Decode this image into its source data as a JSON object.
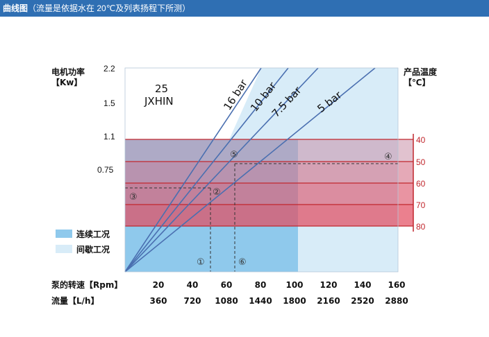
{
  "header": {
    "title": "曲线图",
    "subtitle": "（流量是依据水在 20℃及列表扬程下所测）"
  },
  "chart_data": {
    "type": "line",
    "model": "25\nJXHIN",
    "model_line1": "25",
    "model_line2": "JXHIN",
    "left_axis": {
      "label_line1": "电机功率",
      "label_line2": "【Kw】",
      "ticks": [
        "2.2",
        "1.5",
        "1.1",
        "0.75"
      ]
    },
    "right_axis": {
      "label_line1": "产品温度",
      "label_line2": "【℃】",
      "ticks": [
        "40",
        "50",
        "60",
        "70",
        "80"
      ]
    },
    "x_axis_rpm": {
      "label": "泵的转速【Rpm】",
      "ticks": [
        "20",
        "40",
        "60",
        "80",
        "100",
        "120",
        "140",
        "160"
      ]
    },
    "x_axis_flow": {
      "label": "流量【L/h】",
      "ticks": [
        "360",
        "720",
        "1080",
        "1440",
        "1800",
        "2160",
        "2520",
        "2880"
      ]
    },
    "legend": [
      {
        "label": "连续工况",
        "color": "#8fc9ec"
      },
      {
        "label": "间歇工况",
        "color": "#d8ecf8"
      }
    ],
    "series": [
      {
        "name": "16 bar"
      },
      {
        "name": "10 bar"
      },
      {
        "name": "7.5 bar"
      },
      {
        "name": "5 bar"
      }
    ],
    "annotations": [
      "①",
      "②",
      "③",
      "④",
      "⑤",
      "⑥"
    ],
    "colors": {
      "continuous": "#8fc9ec",
      "intermittent": "#d8ecf8",
      "temp_band": "#d94a55",
      "curve": "#4a6fb0",
      "header": "#2f6fb3"
    }
  }
}
